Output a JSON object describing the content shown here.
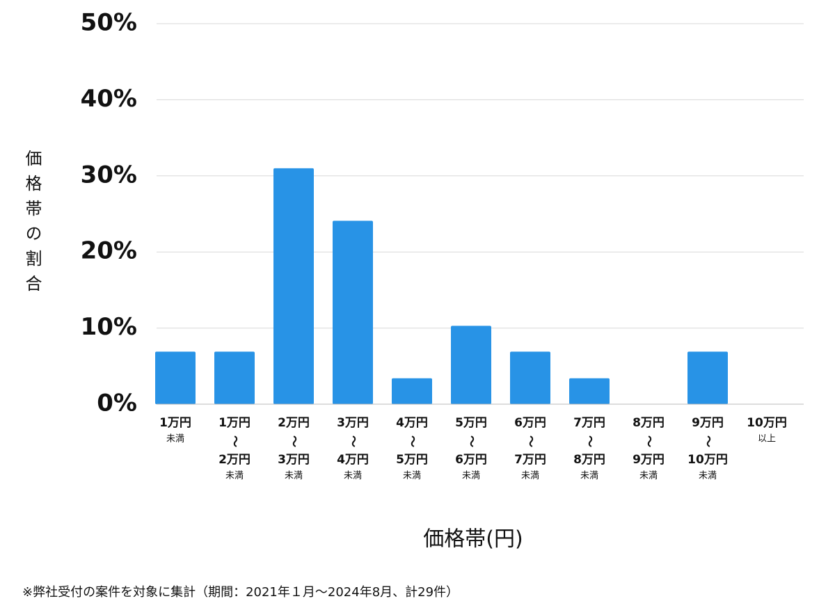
{
  "chart_data": {
    "type": "bar",
    "y_axis_label": "価格帯の割合",
    "x_axis_label": "価格帯(円)",
    "footnote": "※弊社受付の案件を対象に集計（期間：2021年１月～2024年8月、計29件）",
    "categories": [
      [
        "1万円",
        "未満"
      ],
      [
        "1万円",
        "〜",
        "2万円",
        "未満"
      ],
      [
        "2万円",
        "〜",
        "3万円",
        "未満"
      ],
      [
        "3万円",
        "〜",
        "4万円",
        "未満"
      ],
      [
        "4万円",
        "〜",
        "5万円",
        "未満"
      ],
      [
        "5万円",
        "〜",
        "6万円",
        "未満"
      ],
      [
        "6万円",
        "〜",
        "7万円",
        "未満"
      ],
      [
        "7万円",
        "〜",
        "8万円",
        "未満"
      ],
      [
        "8万円",
        "〜",
        "9万円",
        "未満"
      ],
      [
        "9万円",
        "〜",
        "10万円",
        "未満"
      ],
      [
        "10万円",
        "以上"
      ]
    ],
    "values": [
      6.9,
      6.9,
      31.0,
      24.1,
      3.4,
      10.3,
      6.9,
      3.4,
      0,
      6.9,
      0
    ],
    "color": "#2893e6",
    "ylim": [
      0,
      50
    ],
    "yticks": [
      {
        "value": 0,
        "label": "0%"
      },
      {
        "value": 10,
        "label": "10%"
      },
      {
        "value": 20,
        "label": "20%"
      },
      {
        "value": 30,
        "label": "30%"
      },
      {
        "value": 40,
        "label": "40%"
      },
      {
        "value": 50,
        "label": "50%"
      }
    ],
    "grid": true
  }
}
